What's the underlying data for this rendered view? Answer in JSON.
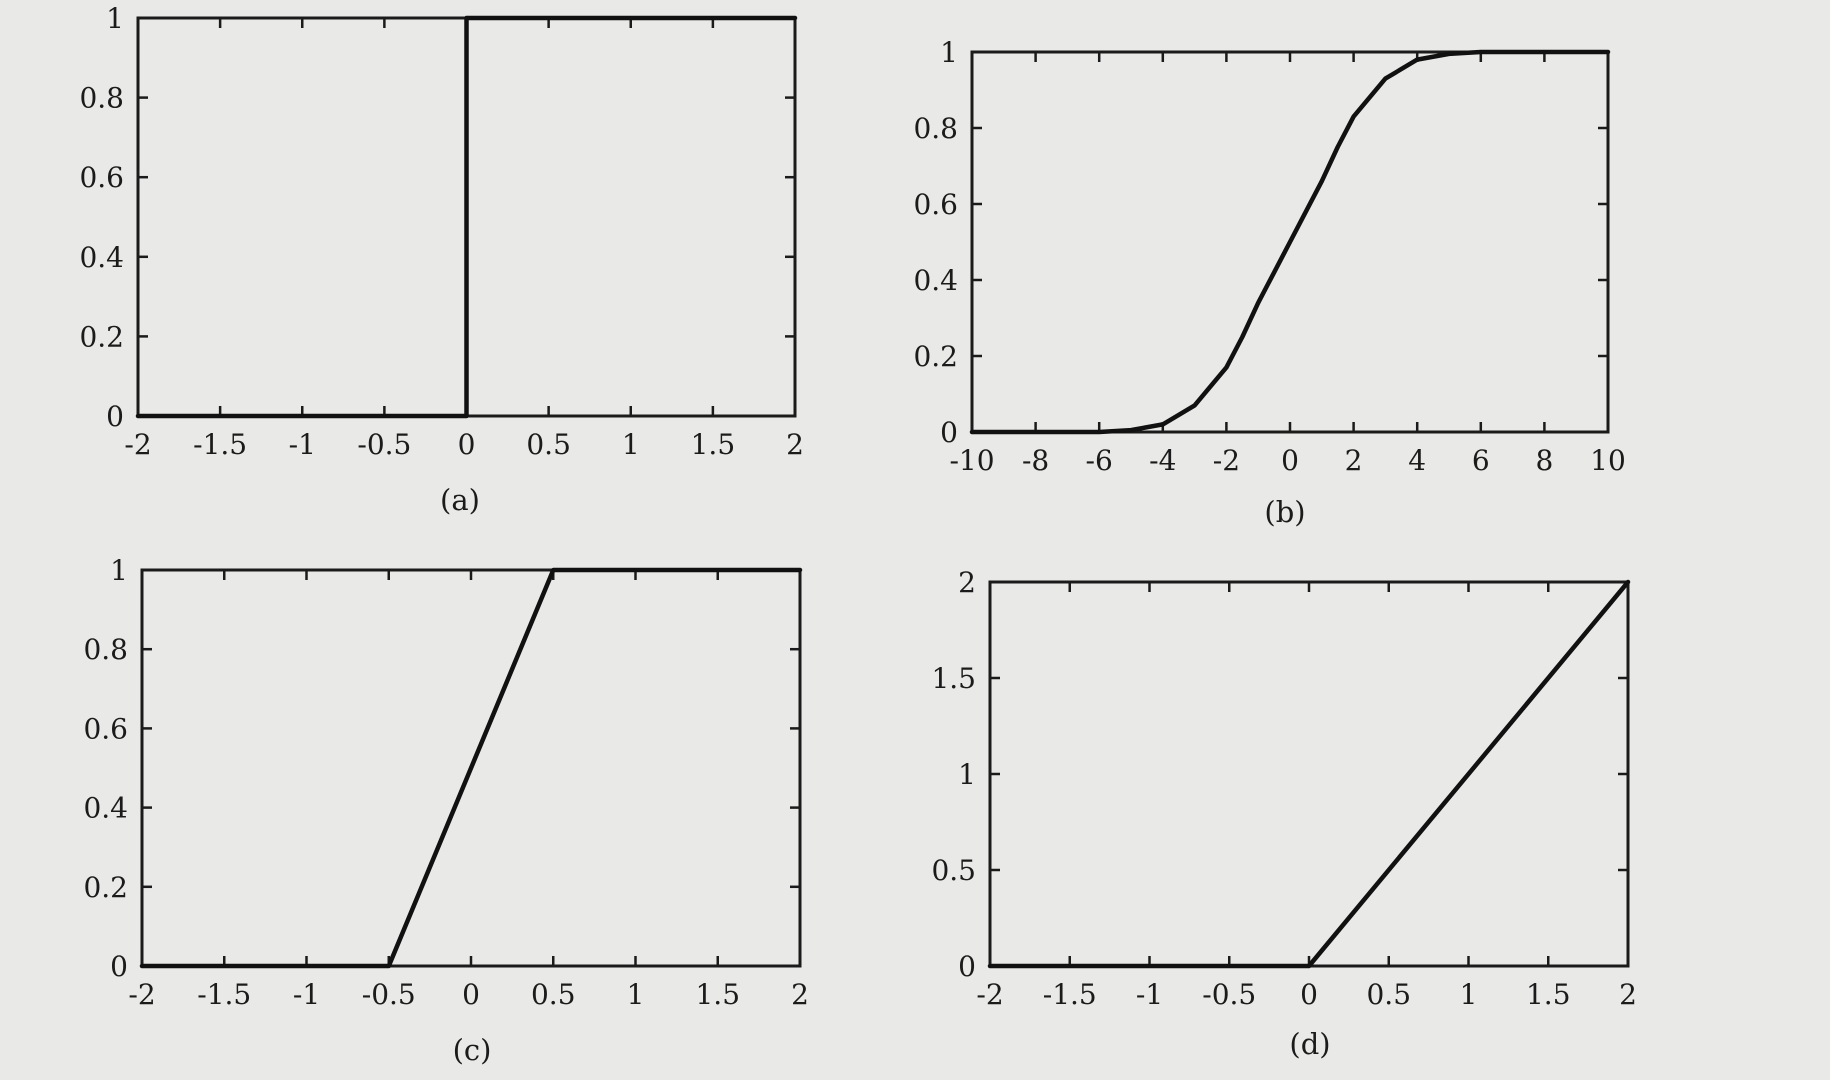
{
  "chart_data": [
    {
      "type": "line",
      "panel_label": "(a)",
      "xlim": [
        -2,
        2
      ],
      "ylim": [
        0,
        1
      ],
      "xticks": [
        -2,
        -1.5,
        -1,
        -0.5,
        0,
        0.5,
        1,
        1.5,
        2
      ],
      "xtick_labels": [
        "-2",
        "-1.5",
        "-1",
        "-0.5",
        "0",
        "0.5",
        "1",
        "1.5",
        "2"
      ],
      "yticks": [
        0,
        0.2,
        0.4,
        0.6,
        0.8,
        1
      ],
      "ytick_labels": [
        "0",
        "0.2",
        "0.4",
        "0.6",
        "0.8",
        "1"
      ],
      "series": [
        {
          "x": [
            -2,
            0,
            0,
            2
          ],
          "y": [
            0,
            0,
            1,
            1
          ]
        }
      ],
      "grid": false,
      "xlabel": "",
      "ylabel": "",
      "title": ""
    },
    {
      "type": "line",
      "panel_label": "(b)",
      "xlim": [
        -10,
        10
      ],
      "ylim": [
        0,
        1
      ],
      "xticks": [
        -10,
        -8,
        -6,
        -4,
        -2,
        0,
        2,
        4,
        6,
        8,
        10
      ],
      "xtick_labels": [
        "-10",
        "-8",
        "-6",
        "-4",
        "-2",
        "0",
        "2",
        "4",
        "6",
        "8",
        "10"
      ],
      "yticks": [
        0,
        0.2,
        0.4,
        0.6,
        0.8,
        1
      ],
      "ytick_labels": [
        "0",
        "0.2",
        "0.4",
        "0.6",
        "0.8",
        "1"
      ],
      "series": [
        {
          "x": [
            -10,
            -6,
            -5,
            -4,
            -3,
            -2,
            -1.5,
            -1,
            -0.5,
            0,
            0.5,
            1,
            1.5,
            2,
            3,
            4,
            5,
            6,
            10
          ],
          "y": [
            0,
            0,
            0.005,
            0.02,
            0.07,
            0.17,
            0.25,
            0.34,
            0.42,
            0.5,
            0.58,
            0.66,
            0.75,
            0.83,
            0.93,
            0.98,
            0.995,
            1,
            1
          ]
        }
      ],
      "grid": false,
      "xlabel": "",
      "ylabel": "",
      "title": ""
    },
    {
      "type": "line",
      "panel_label": "(c)",
      "xlim": [
        -2,
        2
      ],
      "ylim": [
        0,
        1
      ],
      "xticks": [
        -2,
        -1.5,
        -1,
        -0.5,
        0,
        0.5,
        1,
        1.5,
        2
      ],
      "xtick_labels": [
        "-2",
        "-1.5",
        "-1",
        "-0.5",
        "0",
        "0.5",
        "1",
        "1.5",
        "2"
      ],
      "yticks": [
        0,
        0.2,
        0.4,
        0.6,
        0.8,
        1
      ],
      "ytick_labels": [
        "0",
        "0.2",
        "0.4",
        "0.6",
        "0.8",
        "1"
      ],
      "series": [
        {
          "x": [
            -2,
            -0.5,
            0.5,
            2
          ],
          "y": [
            0,
            0,
            1,
            1
          ]
        }
      ],
      "grid": false,
      "xlabel": "",
      "ylabel": "",
      "title": ""
    },
    {
      "type": "line",
      "panel_label": "(d)",
      "xlim": [
        -2,
        2
      ],
      "ylim": [
        0,
        2
      ],
      "xticks": [
        -2,
        -1.5,
        -1,
        -0.5,
        0,
        0.5,
        1,
        1.5,
        2
      ],
      "xtick_labels": [
        "-2",
        "-1.5",
        "-1",
        "-0.5",
        "0",
        "0.5",
        "1",
        "1.5",
        "2"
      ],
      "yticks": [
        0,
        0.5,
        1,
        1.5,
        2
      ],
      "ytick_labels": [
        "0",
        "0.5",
        "1",
        "1.5",
        "2"
      ],
      "series": [
        {
          "x": [
            -2,
            0,
            2
          ],
          "y": [
            0,
            0,
            2
          ]
        }
      ],
      "grid": false,
      "xlabel": "",
      "ylabel": "",
      "title": ""
    }
  ]
}
